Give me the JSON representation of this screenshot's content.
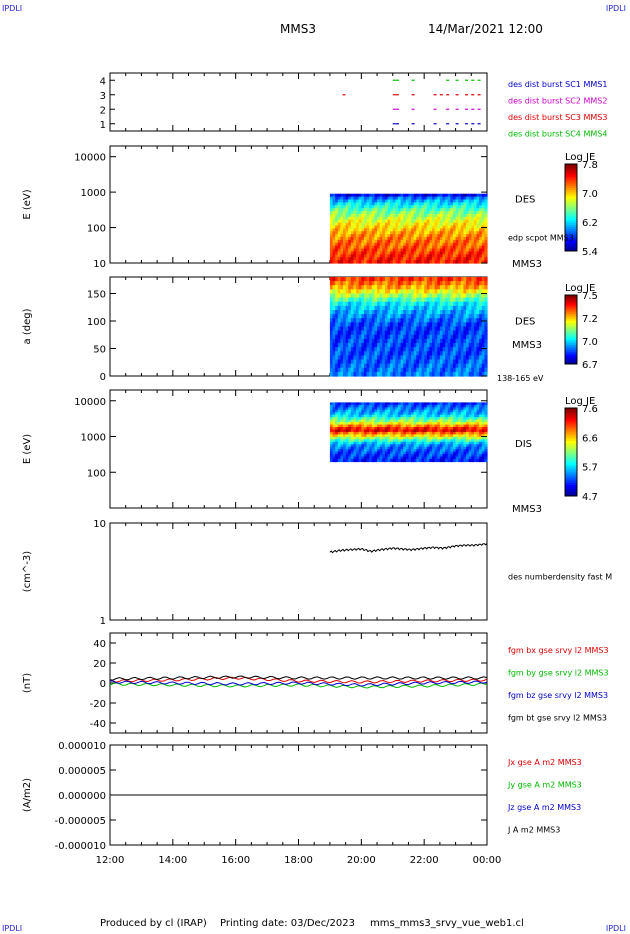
{
  "header": {
    "corner_tl": "IPDLI",
    "corner_tr": "IPDLI",
    "mission": "MMS3",
    "datetime": "14/Mar/2021 12:00"
  },
  "footer": {
    "producer": "Produced by cl (IRAP)",
    "printing_date": "Printing date: 03/Dec/2023",
    "filename": "mms_mms3_srvy_vue_web1.cl",
    "corner_bl": "IPDLI",
    "corner_br": "IPDLI"
  },
  "colors": {
    "mms1": "#0000cc",
    "mms2": "#cc00cc",
    "mms3": "#dd0000",
    "mms4": "#00bb00",
    "bx": "#dd0000",
    "by": "#00bb00",
    "bz": "#0000cc",
    "bt": "#000000"
  },
  "time_axis": {
    "ticks": [
      "12:00",
      "14:00",
      "16:00",
      "18:00",
      "20:00",
      "22:00",
      "00:00"
    ],
    "start_hour": 12,
    "end_hour": 24
  },
  "chart_data": [
    {
      "type": "scatter",
      "id": "availability",
      "ylim": [
        0.5,
        4.5
      ],
      "yticks": [
        "1",
        "2",
        "3",
        "4"
      ],
      "legend": [
        {
          "label": "des dist burst SC1 MMS1",
          "color_key": "mms1"
        },
        {
          "label": "des dist burst SC2 MMS2",
          "color_key": "mms2"
        },
        {
          "label": "des dist burst SC3 MMS3",
          "color_key": "mms3"
        },
        {
          "label": "des dist burst SC4 MMS4",
          "color_key": "mms4"
        }
      ],
      "series": [
        {
          "level": 1,
          "color_key": "mms1",
          "x": [
            21.0,
            21.1,
            21.6,
            22.3,
            22.7,
            23.0,
            23.3,
            23.5,
            23.7
          ]
        },
        {
          "level": 2,
          "color_key": "mms2",
          "x": [
            21.0,
            21.1,
            21.6,
            22.3,
            22.7,
            23.0,
            23.3,
            23.5,
            23.7
          ]
        },
        {
          "level": 3,
          "color_key": "mms3",
          "x": [
            19.4,
            21.0,
            21.1,
            21.6,
            22.3,
            22.5,
            22.7,
            23.0,
            23.3,
            23.5,
            23.7
          ]
        },
        {
          "level": 4,
          "color_key": "mms4",
          "x": [
            21.0,
            21.1,
            21.6,
            22.7,
            23.0,
            23.3,
            23.5,
            23.7
          ]
        }
      ]
    },
    {
      "type": "heatmap",
      "id": "des-energy",
      "ylabel": "E (eV)",
      "log_y": true,
      "ylim": [
        10,
        20000
      ],
      "yticks": [
        "10",
        "100",
        "1000",
        "10000"
      ],
      "right_label": "DES",
      "right_note": "edp scpot MMS3",
      "right_bottom": "MMS3",
      "colorbar": {
        "title": "Log JE",
        "ticks": [
          "7.8",
          "7.0",
          "6.2",
          "5.4"
        ],
        "min": 5.4,
        "max": 7.8
      },
      "data_extent": {
        "x": [
          19.0,
          24.0
        ],
        "y": [
          10,
          900
        ]
      },
      "colormap": [
        [
          10,
          0.86
        ],
        [
          30,
          0.78
        ],
        [
          100,
          0.66
        ],
        [
          200,
          0.55
        ],
        [
          400,
          0.4
        ],
        [
          700,
          0.22
        ],
        [
          900,
          0.05
        ]
      ]
    },
    {
      "type": "heatmap",
      "id": "des-pitch",
      "ylabel": "a (deg)",
      "ylim": [
        0,
        180
      ],
      "yticks": [
        "0",
        "50",
        "100",
        "150"
      ],
      "right_label": "DES",
      "right_bottom": "MMS3",
      "right_note": "138-165 eV",
      "colorbar": {
        "title": "Log JE",
        "ticks": [
          "7.5",
          "7.2",
          "7.0",
          "6.7"
        ],
        "min": 6.7,
        "max": 7.5
      },
      "data_extent": {
        "x": [
          19.0,
          24.0
        ],
        "y": [
          0,
          180
        ]
      },
      "colormap": [
        [
          0,
          0.25
        ],
        [
          40,
          0.2
        ],
        [
          90,
          0.18
        ],
        [
          130,
          0.35
        ],
        [
          160,
          0.7
        ],
        [
          180,
          0.85
        ]
      ]
    },
    {
      "type": "heatmap",
      "id": "dis-energy",
      "ylabel": "E (eV)",
      "log_y": true,
      "ylim": [
        10,
        20000
      ],
      "yticks": [
        "100",
        "1000",
        "10000"
      ],
      "right_label": "DIS",
      "right_bottom": "MMS3",
      "colorbar": {
        "title": "Log JE",
        "ticks": [
          "7.6",
          "6.6",
          "5.7",
          "4.7"
        ],
        "min": 4.7,
        "max": 7.6
      },
      "data_extent": {
        "x": [
          19.0,
          24.0
        ],
        "y": [
          200,
          9000
        ]
      },
      "colormap": [
        [
          200,
          0.15
        ],
        [
          600,
          0.28
        ],
        [
          1000,
          0.62
        ],
        [
          1500,
          0.92
        ],
        [
          2500,
          0.55
        ],
        [
          4000,
          0.32
        ],
        [
          8000,
          0.18
        ],
        [
          9000,
          0.12
        ]
      ]
    },
    {
      "type": "line",
      "id": "density",
      "ylabel": "(cm^-3)",
      "log_y": true,
      "ylim": [
        1,
        10
      ],
      "yticks": [
        "1",
        "10"
      ],
      "series": [
        {
          "name": "des numberdensity fast M",
          "color_key": "bt",
          "x": [
            19.0,
            19.3,
            19.6,
            20.0,
            20.3,
            20.6,
            21.0,
            21.3,
            21.6,
            22.0,
            22.3,
            22.6,
            23.0,
            23.3,
            23.6,
            24.0
          ],
          "y": [
            5.0,
            5.2,
            5.3,
            5.4,
            5.1,
            5.3,
            5.5,
            5.4,
            5.3,
            5.5,
            5.6,
            5.5,
            5.8,
            5.9,
            5.9,
            6.1
          ]
        }
      ]
    },
    {
      "type": "line",
      "id": "fgm",
      "ylabel": "(nT)",
      "ylim": [
        -50,
        50
      ],
      "yticks": [
        "-40",
        "-20",
        "0",
        "20",
        "40"
      ],
      "series": [
        {
          "name": "fgm bx gse srvy l2 MMS3",
          "color_key": "bx",
          "x": [
            12,
            14,
            16,
            18,
            20,
            22,
            24
          ],
          "y": [
            2,
            3,
            5,
            2,
            1,
            2,
            3
          ]
        },
        {
          "name": "fgm by gse srvy l2 MMS3",
          "color_key": "by",
          "x": [
            12,
            14,
            16,
            18,
            20,
            22,
            24
          ],
          "y": [
            -1,
            -2,
            -3,
            -2,
            -4,
            -3,
            -1
          ]
        },
        {
          "name": "fgm bz gse srvy l2 MMS3",
          "color_key": "bz",
          "x": [
            12,
            14,
            16,
            18,
            20,
            22,
            24
          ],
          "y": [
            1,
            0,
            -1,
            0,
            -2,
            0,
            1
          ]
        },
        {
          "name": "fgm bt gse srvy l2 MMS3",
          "color_key": "bt",
          "x": [
            12,
            14,
            16,
            18,
            20,
            22,
            24
          ],
          "y": [
            4,
            5,
            6,
            5,
            5,
            5,
            5
          ]
        }
      ]
    },
    {
      "type": "line",
      "id": "current",
      "ylabel": "(A/m2)",
      "ylim": [
        -1e-05,
        1e-05
      ],
      "yticks": [
        "-0.000010",
        "-0.000005",
        "0.000000",
        "0.000005",
        "0.000010"
      ],
      "series": [
        {
          "name": "Jx gse A m2 MMS3",
          "color_key": "bx",
          "x": [
            12,
            24
          ],
          "y": [
            0,
            0
          ]
        },
        {
          "name": "Jy gse A m2 MMS3",
          "color_key": "by",
          "x": [
            12,
            24
          ],
          "y": [
            0,
            0
          ]
        },
        {
          "name": "Jz gse A m2 MMS3",
          "color_key": "bz",
          "x": [
            12,
            24
          ],
          "y": [
            0,
            0
          ]
        },
        {
          "name": "J A m2 MMS3",
          "color_key": "bt",
          "x": [
            12,
            24
          ],
          "y": [
            0,
            0
          ]
        }
      ]
    }
  ]
}
